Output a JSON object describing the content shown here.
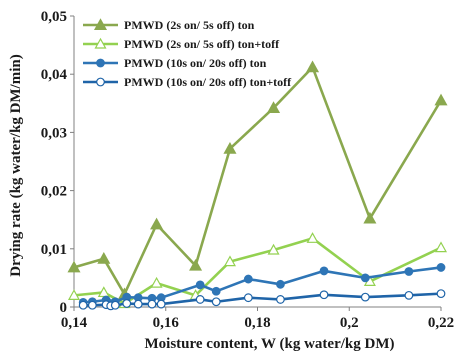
{
  "chart_data": {
    "type": "line",
    "title": "",
    "xlabel": "Moisture content, W (kg water/kg DM)",
    "ylabel": "Drying rate (kg water/kg DM/min)",
    "xlim": [
      0.14,
      0.22
    ],
    "ylim": [
      0,
      0.05
    ],
    "x_ticks": [
      "0,14",
      "0,16",
      "0,18",
      "0,2",
      "0,22"
    ],
    "y_ticks": [
      "0",
      "0,01",
      "0,02",
      "0,03",
      "0,04",
      "0,05"
    ],
    "grid": false,
    "legend_position": "top-center",
    "series": [
      {
        "name": "PMWD (2s on/ 5s off) ton",
        "color": "#8aa84e",
        "marker": "triangle-filled",
        "x": [
          0.14,
          0.1465,
          0.151,
          0.158,
          0.1665,
          0.174,
          0.1835,
          0.192,
          0.2045,
          0.22
        ],
        "y": [
          0.0068,
          0.0083,
          0.0022,
          0.0142,
          0.0071,
          0.0272,
          0.0342,
          0.0412,
          0.0152,
          0.0355
        ]
      },
      {
        "name": "PMWD (2s on/ 5s off) ton+toff",
        "color": "#93d150",
        "marker": "triangle-open",
        "x": [
          0.14,
          0.1465,
          0.151,
          0.158,
          0.1665,
          0.174,
          0.1835,
          0.192,
          0.2045,
          0.22
        ],
        "y": [
          0.002,
          0.0025,
          0.0006,
          0.0041,
          0.002,
          0.0078,
          0.0098,
          0.0118,
          0.0044,
          0.0102
        ]
      },
      {
        "name": "PMWD (10s on/ 20s off) ton",
        "color": "#2e75b6",
        "marker": "circle-filled",
        "x": [
          0.142,
          0.144,
          0.147,
          0.148,
          0.149,
          0.1515,
          0.154,
          0.157,
          0.159,
          0.1675,
          0.171,
          0.178,
          0.185,
          0.1945,
          0.2035,
          0.213,
          0.22
        ],
        "y": [
          0.0008,
          0.0009,
          0.0012,
          0.0006,
          0.0009,
          0.0017,
          0.0016,
          0.0015,
          0.0016,
          0.0038,
          0.0027,
          0.0048,
          0.0039,
          0.0062,
          0.005,
          0.0061,
          0.0068
        ]
      },
      {
        "name": "PMWD (10s on/ 20s off) ton+toff",
        "color": "#1f64a8",
        "marker": "circle-open",
        "x": [
          0.142,
          0.144,
          0.147,
          0.148,
          0.149,
          0.1515,
          0.154,
          0.157,
          0.159,
          0.1675,
          0.171,
          0.178,
          0.185,
          0.1945,
          0.2035,
          0.213,
          0.22
        ],
        "y": [
          0.0003,
          0.0003,
          0.0004,
          0.0002,
          0.0003,
          0.0006,
          0.0005,
          0.0005,
          0.0005,
          0.0013,
          0.0009,
          0.0016,
          0.0013,
          0.0021,
          0.0017,
          0.002,
          0.0023
        ]
      }
    ]
  }
}
